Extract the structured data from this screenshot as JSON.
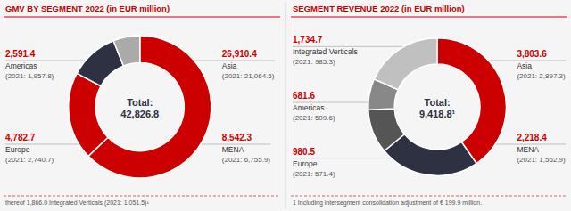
{
  "chart_data": [
    {
      "type": "donut",
      "title": "GMV BY SEGMENT 2022 (in EUR million)",
      "categories": [
        "Asia",
        "MENA",
        "Europe",
        "Americas"
      ],
      "values": [
        26910.4,
        8542.3,
        4782.7,
        2591.4
      ],
      "value_labels": [
        "26,910.4",
        "8,542.3",
        "4,782.7",
        "2,591.4"
      ],
      "comparison_labels": [
        "(2021: 21,064.5)",
        "(2021: 6,755.9)",
        "(2021: 2,740.7)",
        "(2021: 1,957.8)"
      ],
      "colors": [
        "#cc0000",
        "#cc0000",
        "#2d3142",
        "#aaaaaa"
      ],
      "data_labels": true,
      "center_labels": [
        "Total:",
        "42,826.8"
      ],
      "footnote": "thereof 1,866.0 Integrated Verticals (2021: 1,051.5)¹"
    },
    {
      "type": "donut",
      "title": "SEGMENT REVENUE 2022 (in EUR million)",
      "categories": [
        "Asia",
        "MENA",
        "Europe",
        "Americas",
        "Integrated Verticals"
      ],
      "values": [
        3803.6,
        2218.4,
        980.5,
        681.6,
        1734.7
      ],
      "value_labels": [
        "3,803.6",
        "2,218.4",
        "980.5",
        "681.6",
        "1,734.7"
      ],
      "comparison_labels": [
        "(2021: 2,897.3)",
        "(2021: 1,562.9)",
        "(2021: 571.4)",
        "(2021: 509.6)",
        "(2021: 985.3)"
      ],
      "colors": [
        "#cc0000",
        "#2d3142",
        "#555555",
        "#888888",
        "#c0c0c0"
      ],
      "data_labels": true,
      "center_labels": [
        "Total:",
        "9,418.8¹"
      ],
      "footnote": "1   Including intersegment consolidation adjustment of € 199.9 million."
    }
  ]
}
